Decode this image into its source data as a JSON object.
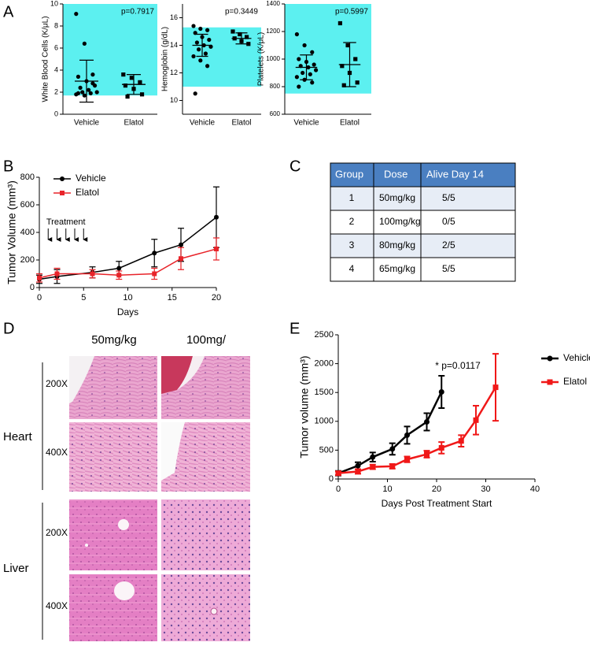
{
  "panels": [
    "A",
    "B",
    "C",
    "D",
    "E"
  ],
  "chart_data": [
    {
      "type": "strip",
      "y_label": "White Blood Cells (K/μL)",
      "categories": [
        "Vehicle",
        "Elatol"
      ],
      "values": [
        [
          9.1,
          6.4,
          3.6,
          3.4,
          3.0,
          2.6,
          2.4,
          2.2,
          2.0,
          2.0,
          1.9,
          1.8,
          1.7,
          2.8,
          1.9
        ],
        [
          3.6,
          3.3,
          2.9,
          2.6,
          2.3,
          1.8,
          1.6
        ]
      ],
      "means": [
        3.0,
        2.7
      ],
      "sd": [
        1.9,
        0.9
      ],
      "markers": [
        "circle",
        "square"
      ],
      "color": "#000000",
      "reference_range": [
        1.7,
        10
      ],
      "band_color": "#5cf0f0",
      "annotation": "p=0.7917",
      "ylim": [
        0,
        10
      ],
      "yticks": [
        0,
        2,
        4,
        6,
        8,
        10
      ]
    },
    {
      "type": "strip",
      "y_label": "Hemoglobin (g/dL)",
      "categories": [
        "Vehicle",
        "Elatol"
      ],
      "values": [
        [
          15.4,
          15.2,
          15.1,
          14.9,
          14.6,
          14.4,
          14.2,
          14.0,
          13.9,
          13.7,
          13.4,
          13.2,
          12.9,
          12.5,
          10.5
        ],
        [
          15.0,
          14.8,
          14.6,
          14.5,
          14.3,
          14.1
        ]
      ],
      "means": [
        14.0,
        14.5
      ],
      "sd": [
        0.8,
        0.4
      ],
      "markers": [
        "circle",
        "square"
      ],
      "color": "#000000",
      "reference_range": [
        11,
        15.3
      ],
      "band_color": "#5cf0f0",
      "annotation": "p=0.3449",
      "ylim": [
        9,
        17
      ],
      "yticks": [
        10,
        12,
        14,
        16
      ]
    },
    {
      "type": "strip",
      "y_label": "Platelets (K/μL)",
      "categories": [
        "Vehicle",
        "Elatol"
      ],
      "values": [
        [
          1180,
          1100,
          1050,
          1000,
          980,
          960,
          950,
          940,
          920,
          900,
          890,
          870,
          850,
          830,
          800
        ],
        [
          1260,
          1100,
          1000,
          950,
          900,
          830,
          810
        ]
      ],
      "means": [
        940,
        960
      ],
      "sd": [
        90,
        160
      ],
      "markers": [
        "circle",
        "square"
      ],
      "color": "#000000",
      "reference_range": [
        750,
        1400
      ],
      "band_color": "#5cf0f0",
      "annotation": "p=0.5997",
      "ylim": [
        600,
        1400
      ],
      "yticks": [
        600,
        800,
        1000,
        1200,
        1400
      ]
    },
    {
      "type": "line",
      "x_label": "Days",
      "y_label": "Tumor Volume (mm³)",
      "legend": "upper left",
      "series": [
        {
          "name": "Vehicle",
          "color": "#000000",
          "marker": "circle",
          "x": [
            0,
            2,
            6,
            9,
            13,
            16,
            20
          ],
          "values": [
            60,
            80,
            110,
            140,
            250,
            310,
            510
          ],
          "errors": [
            30,
            50,
            40,
            50,
            100,
            120,
            220
          ]
        },
        {
          "name": "Elatol",
          "color": "#e8242a",
          "marker": "square",
          "x": [
            0,
            2,
            6,
            9,
            13,
            16,
            20
          ],
          "values": [
            70,
            100,
            100,
            90,
            100,
            210,
            280
          ],
          "errors": [
            30,
            40,
            30,
            30,
            40,
            80,
            80
          ]
        }
      ],
      "annotation": "Treatment",
      "treatment_days": [
        1,
        2,
        3,
        4,
        5
      ],
      "xlim": [
        0,
        20
      ],
      "xticks": [
        0,
        5,
        10,
        15,
        20
      ],
      "ylim": [
        0,
        800
      ],
      "yticks": [
        0,
        200,
        400,
        600,
        800
      ]
    },
    {
      "type": "line",
      "x_label": "Days Post Treatment Start",
      "y_label": "Tumor volume (mm³)",
      "legend": "right outside",
      "series": [
        {
          "name": "Vehicle",
          "color": "#000000",
          "marker": "circle",
          "x": [
            0,
            4,
            7,
            11,
            14,
            18,
            21
          ],
          "values": [
            100,
            230,
            380,
            520,
            760,
            990,
            1510
          ],
          "errors": [
            40,
            60,
            80,
            100,
            150,
            150,
            280
          ]
        },
        {
          "name": "Elatol",
          "color": "#f01818",
          "marker": "square",
          "x": [
            0,
            4,
            7,
            11,
            14,
            18,
            21,
            25,
            28,
            32
          ],
          "values": [
            100,
            130,
            210,
            220,
            340,
            430,
            540,
            660,
            1020,
            1590
          ],
          "errors": [
            30,
            40,
            40,
            40,
            50,
            60,
            100,
            100,
            250,
            580
          ]
        }
      ],
      "annotation": "* p=0.0117",
      "xlim": [
        0,
        40
      ],
      "xticks": [
        0,
        10,
        20,
        30,
        40
      ],
      "ylim": [
        0,
        2500
      ],
      "yticks": [
        0,
        500,
        1000,
        1500,
        2000,
        2500
      ]
    }
  ],
  "table": {
    "headers": [
      "Group",
      "Dose",
      "Alive Day 14"
    ],
    "rows": [
      [
        "1",
        "50mg/kg",
        "5/5"
      ],
      [
        "2",
        "100mg/kg",
        "0/5"
      ],
      [
        "3",
        "80mg/kg",
        "2/5"
      ],
      [
        "4",
        "65mg/kg",
        "5/5"
      ]
    ]
  },
  "histology": {
    "columns": [
      "50mg/kg",
      "100mg/"
    ],
    "rows": [
      {
        "tissue": "Heart",
        "magnifications": [
          "200X",
          "400X"
        ]
      },
      {
        "tissue": "Liver",
        "magnifications": [
          "200X",
          "400X"
        ]
      }
    ]
  }
}
